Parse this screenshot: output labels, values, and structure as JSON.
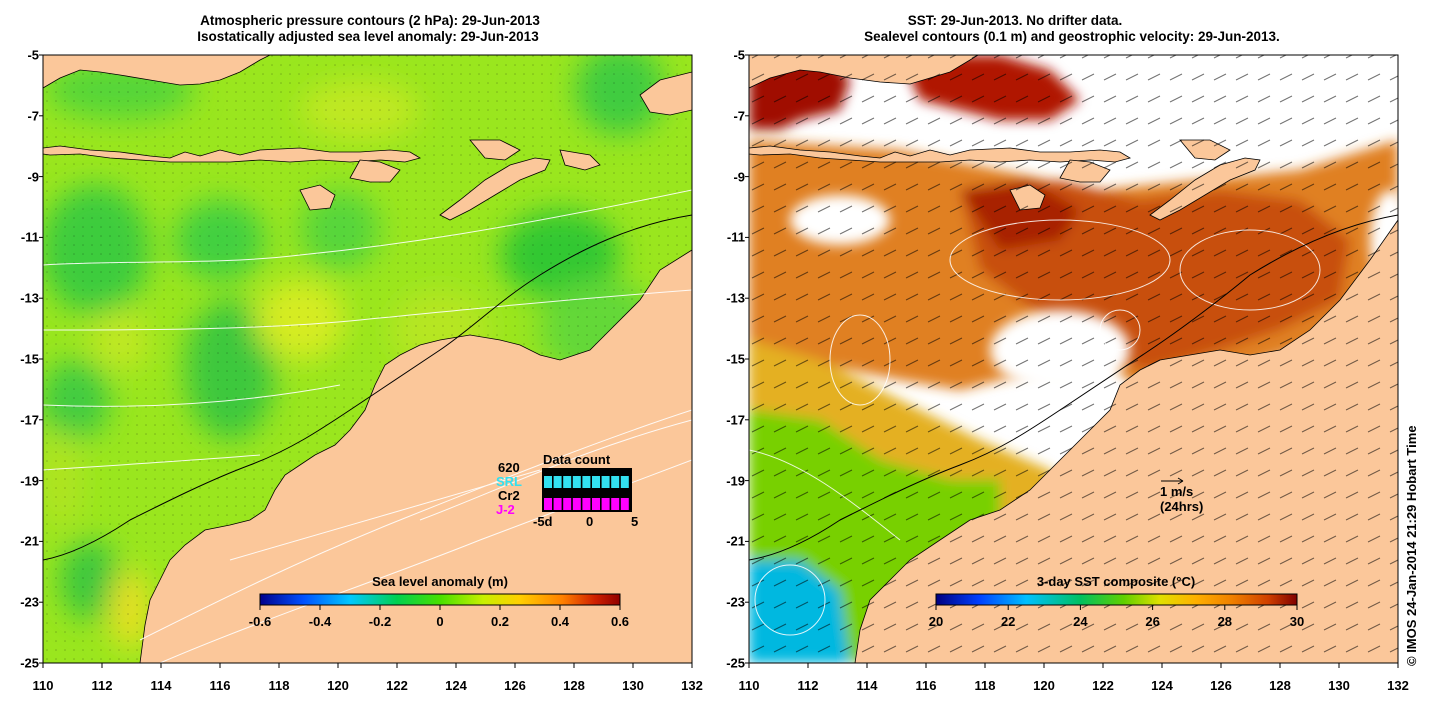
{
  "left_panel": {
    "title_line1": "Atmospheric pressure contours (2 hPa): 29-Jun-2013",
    "title_line2": "Isostatically adjusted sea level anomaly: 29-Jun-2013",
    "colorbar": {
      "title": "Sea level anomaly (m)",
      "ticks": [
        "-0.6",
        "-0.4",
        "-0.2",
        "0",
        "0.2",
        "0.4",
        "0.6"
      ],
      "range": [
        -0.6,
        0.6
      ]
    },
    "data_count": {
      "title": "Data count",
      "count_value": "620",
      "labels": [
        "SRL",
        "Cr2",
        "J-2"
      ],
      "label_colors": [
        "#33e0f0",
        "#000000",
        "#ff00ff"
      ],
      "axis_ticks": [
        "-5d",
        "0",
        "5"
      ]
    }
  },
  "right_panel": {
    "title_line1": "SST: 29-Jun-2013. No drifter data.",
    "title_line2": "Sealevel contours (0.1 m) and geostrophic velocity: 29-Jun-2013.",
    "colorbar": {
      "title": "3-day SST composite (°C)",
      "ticks": [
        "20",
        "22",
        "24",
        "26",
        "28",
        "30"
      ],
      "range": [
        20,
        30
      ]
    },
    "velocity_scale": {
      "line1": "1 m/s",
      "line2": "(24hrs)"
    }
  },
  "axes": {
    "lon_ticks": [
      "110",
      "112",
      "114",
      "116",
      "118",
      "120",
      "122",
      "124",
      "126",
      "128",
      "130",
      "132"
    ],
    "lat_ticks": [
      "-5",
      "-7",
      "-9",
      "-11",
      "-13",
      "-15",
      "-17",
      "-19",
      "-21",
      "-23",
      "-25"
    ]
  },
  "credit": "© IMOS 24-Jan-2014 21:29 Hobart Time",
  "colors": {
    "land": "#fbc79a",
    "sla_scale": [
      "#00008b",
      "#0050ff",
      "#00c8ff",
      "#00d050",
      "#48e000",
      "#c8f000",
      "#ffd000",
      "#ff8000",
      "#d02000",
      "#900000"
    ],
    "sst_scale": [
      "#000080",
      "#0040ff",
      "#00c0ff",
      "#00c060",
      "#60d000",
      "#e0e000",
      "#ffb000",
      "#f08000",
      "#d04000",
      "#800000"
    ]
  }
}
